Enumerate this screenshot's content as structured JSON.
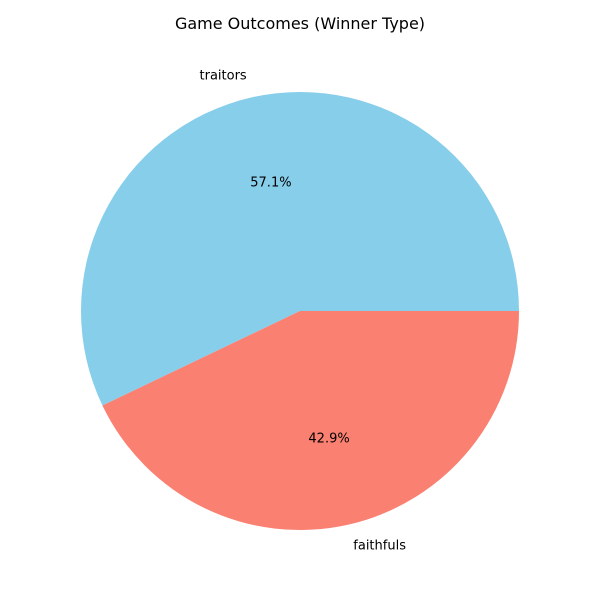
{
  "chart_data": {
    "type": "pie",
    "title": "Game Outcomes (Winner Type)",
    "slices": [
      {
        "label": "traitors",
        "value": 57.1,
        "pct_label": "57.1%",
        "color": "#87CEEB"
      },
      {
        "label": "faithfuls",
        "value": 42.9,
        "pct_label": "42.9%",
        "color": "#FA8072"
      }
    ]
  }
}
